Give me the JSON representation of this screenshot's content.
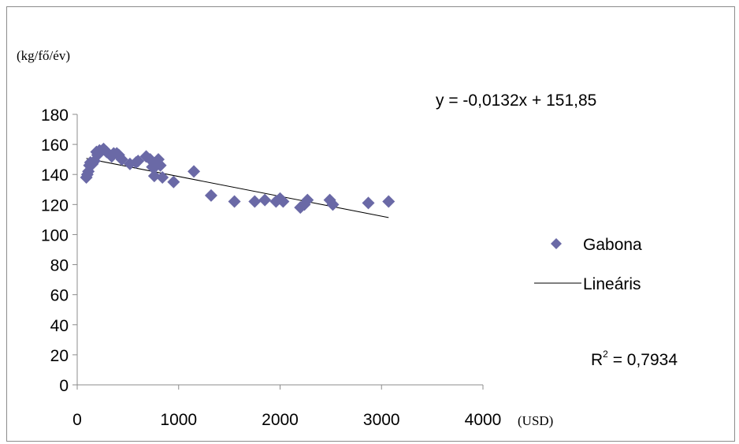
{
  "chart_data": {
    "type": "scatter",
    "ylabel": "(kg/fő/év)",
    "xlabel": "(USD)",
    "xlim": [
      0,
      4000
    ],
    "ylim": [
      0,
      180
    ],
    "x_ticks": [
      "0",
      "1000",
      "2000",
      "3000",
      "4000"
    ],
    "y_ticks": [
      "0",
      "20",
      "40",
      "60",
      "80",
      "100",
      "120",
      "140",
      "160",
      "180"
    ],
    "x_tick_values": [
      0,
      1000,
      2000,
      3000,
      4000
    ],
    "y_tick_values": [
      0,
      20,
      40,
      60,
      80,
      100,
      120,
      140,
      160,
      180
    ],
    "grid": false,
    "legend_position": "right",
    "equation": "y = -0,0132x + 151,85",
    "r2_label": "R",
    "r2_sup": "2",
    "r2_value": " = 0,7934",
    "series": [
      {
        "name": "Gabona",
        "marker": "diamond",
        "color": "#6a69a6",
        "points": [
          [
            90,
            138
          ],
          [
            100,
            140
          ],
          [
            110,
            142
          ],
          [
            120,
            146
          ],
          [
            130,
            148
          ],
          [
            150,
            147
          ],
          [
            170,
            149
          ],
          [
            190,
            155
          ],
          [
            200,
            153
          ],
          [
            220,
            156
          ],
          [
            260,
            157
          ],
          [
            290,
            155
          ],
          [
            340,
            152
          ],
          [
            360,
            154
          ],
          [
            390,
            154
          ],
          [
            410,
            153
          ],
          [
            440,
            150
          ],
          [
            520,
            147
          ],
          [
            580,
            148
          ],
          [
            600,
            149
          ],
          [
            680,
            152
          ],
          [
            720,
            150
          ],
          [
            740,
            145
          ],
          [
            760,
            139
          ],
          [
            780,
            146
          ],
          [
            800,
            150
          ],
          [
            820,
            146
          ],
          [
            840,
            138
          ],
          [
            950,
            135
          ],
          [
            1150,
            142
          ],
          [
            1320,
            126
          ],
          [
            1550,
            122
          ],
          [
            1750,
            122
          ],
          [
            1850,
            123
          ],
          [
            1960,
            122
          ],
          [
            2000,
            124
          ],
          [
            2030,
            122
          ],
          [
            2200,
            118
          ],
          [
            2240,
            120
          ],
          [
            2270,
            123
          ],
          [
            2490,
            123
          ],
          [
            2520,
            120
          ],
          [
            2870,
            121
          ],
          [
            3070,
            122
          ]
        ]
      },
      {
        "name": "Lineáris",
        "type": "line",
        "color": "#000000",
        "slope": -0.0132,
        "intercept": 151.85,
        "x_range": [
          90,
          3070
        ]
      }
    ]
  }
}
